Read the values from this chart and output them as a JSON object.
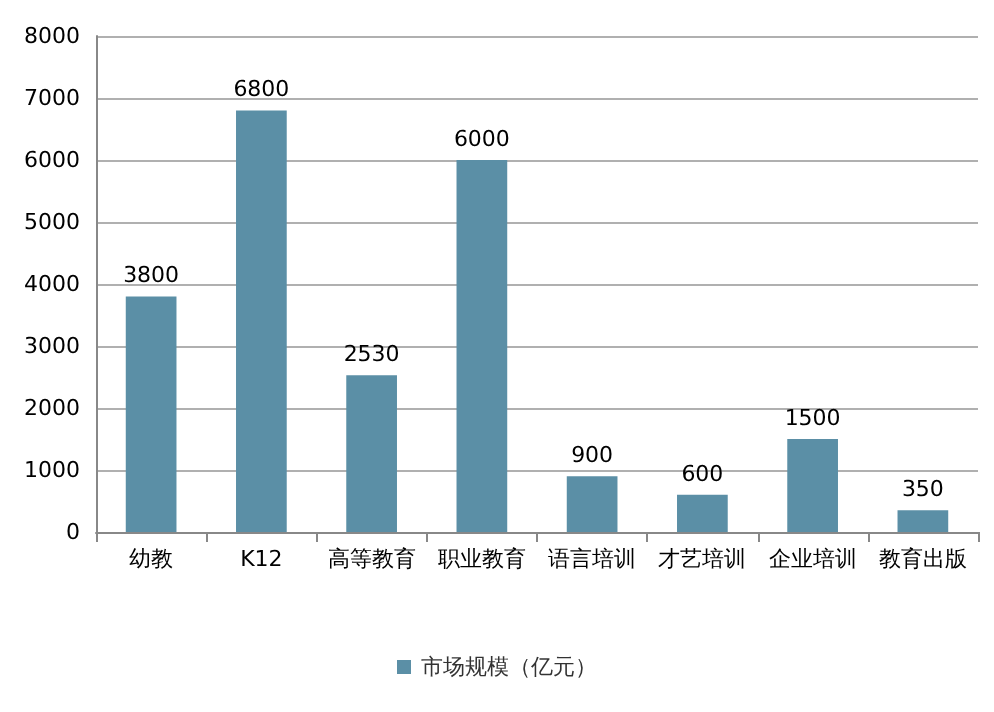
{
  "chart_data": {
    "type": "bar",
    "categories": [
      "幼教",
      "K12",
      "高等教育",
      "职业教育",
      "语言培训",
      "才艺培训",
      "企业培训",
      "教育出版"
    ],
    "series": [
      {
        "name": "市场规模（亿元）",
        "color": "#5b8fa6",
        "values": [
          3800,
          6800,
          2530,
          6000,
          900,
          600,
          1500,
          350
        ]
      }
    ],
    "ylim": [
      0,
      8000
    ],
    "yticks": [
      0,
      1000,
      2000,
      3000,
      4000,
      5000,
      6000,
      7000,
      8000
    ],
    "grid": "y",
    "legend": "bottom",
    "data_labels": true
  }
}
